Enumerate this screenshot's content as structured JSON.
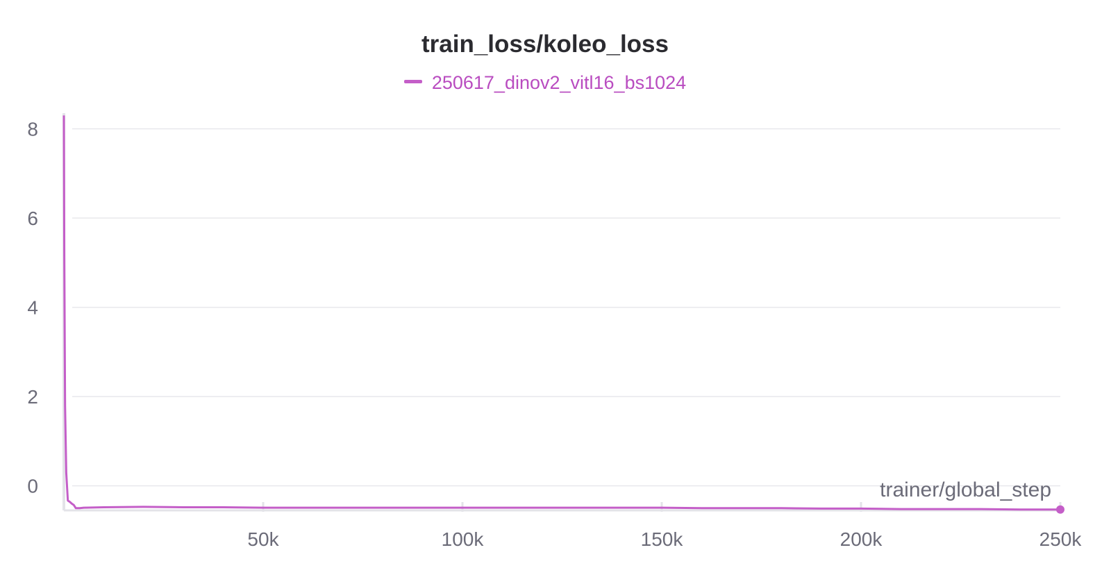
{
  "chart_data": {
    "type": "line",
    "title": "train_loss/koleo_loss",
    "xlabel": "trainer/global_step",
    "ylabel": "",
    "xlim": [
      0,
      250000
    ],
    "ylim": [
      -0.55,
      8.35
    ],
    "x_ticks": [
      {
        "value": 50000,
        "label": "50k"
      },
      {
        "value": 100000,
        "label": "100k"
      },
      {
        "value": 150000,
        "label": "150k"
      },
      {
        "value": 200000,
        "label": "200k"
      },
      {
        "value": 250000,
        "label": "250k"
      }
    ],
    "y_ticks": [
      {
        "value": 0,
        "label": "0"
      },
      {
        "value": 2,
        "label": "2"
      },
      {
        "value": 4,
        "label": "4"
      },
      {
        "value": 6,
        "label": "6"
      },
      {
        "value": 8,
        "label": "8"
      }
    ],
    "grid": true,
    "legend_position": "top-center",
    "series": [
      {
        "name": "250617_dinov2_vitl16_bs1024",
        "color": "#c45ec8",
        "x": [
          0,
          100,
          300,
          600,
          1000,
          1500,
          2000,
          2500,
          3000,
          4000,
          5000,
          10000,
          20000,
          30000,
          40000,
          50000,
          60000,
          70000,
          80000,
          90000,
          100000,
          110000,
          120000,
          130000,
          140000,
          150000,
          160000,
          170000,
          180000,
          190000,
          200000,
          210000,
          220000,
          230000,
          240000,
          250000
        ],
        "y": [
          8.3,
          5.2,
          1.8,
          0.3,
          -0.33,
          -0.36,
          -0.4,
          -0.43,
          -0.5,
          -0.5,
          -0.49,
          -0.48,
          -0.47,
          -0.48,
          -0.48,
          -0.49,
          -0.49,
          -0.49,
          -0.49,
          -0.49,
          -0.49,
          -0.49,
          -0.49,
          -0.49,
          -0.49,
          -0.49,
          -0.5,
          -0.5,
          -0.5,
          -0.51,
          -0.51,
          -0.52,
          -0.52,
          -0.52,
          -0.53,
          -0.53
        ]
      }
    ]
  }
}
